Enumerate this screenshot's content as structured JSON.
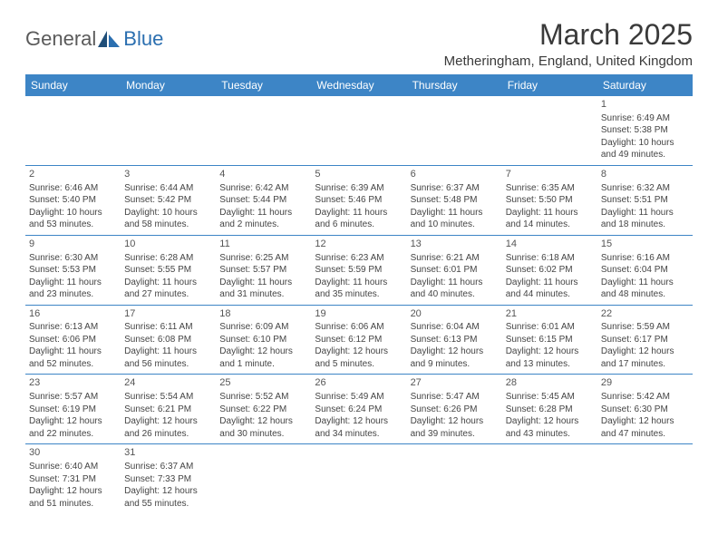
{
  "branding": {
    "logo_text_1": "General",
    "logo_text_2": "Blue",
    "logo_color_1": "#5a5a5a",
    "logo_color_2": "#2b6fb0"
  },
  "header": {
    "month_title": "March 2025",
    "location": "Metheringham, England, United Kingdom"
  },
  "colors": {
    "header_bg": "#3d85c6",
    "header_text": "#ffffff",
    "grid_line": "#3d85c6",
    "text": "#444444"
  },
  "day_names": [
    "Sunday",
    "Monday",
    "Tuesday",
    "Wednesday",
    "Thursday",
    "Friday",
    "Saturday"
  ],
  "weeks": [
    [
      null,
      null,
      null,
      null,
      null,
      null,
      {
        "n": "1",
        "sunrise": "Sunrise: 6:49 AM",
        "sunset": "Sunset: 5:38 PM",
        "daylight": "Daylight: 10 hours and 49 minutes."
      }
    ],
    [
      {
        "n": "2",
        "sunrise": "Sunrise: 6:46 AM",
        "sunset": "Sunset: 5:40 PM",
        "daylight": "Daylight: 10 hours and 53 minutes."
      },
      {
        "n": "3",
        "sunrise": "Sunrise: 6:44 AM",
        "sunset": "Sunset: 5:42 PM",
        "daylight": "Daylight: 10 hours and 58 minutes."
      },
      {
        "n": "4",
        "sunrise": "Sunrise: 6:42 AM",
        "sunset": "Sunset: 5:44 PM",
        "daylight": "Daylight: 11 hours and 2 minutes."
      },
      {
        "n": "5",
        "sunrise": "Sunrise: 6:39 AM",
        "sunset": "Sunset: 5:46 PM",
        "daylight": "Daylight: 11 hours and 6 minutes."
      },
      {
        "n": "6",
        "sunrise": "Sunrise: 6:37 AM",
        "sunset": "Sunset: 5:48 PM",
        "daylight": "Daylight: 11 hours and 10 minutes."
      },
      {
        "n": "7",
        "sunrise": "Sunrise: 6:35 AM",
        "sunset": "Sunset: 5:50 PM",
        "daylight": "Daylight: 11 hours and 14 minutes."
      },
      {
        "n": "8",
        "sunrise": "Sunrise: 6:32 AM",
        "sunset": "Sunset: 5:51 PM",
        "daylight": "Daylight: 11 hours and 18 minutes."
      }
    ],
    [
      {
        "n": "9",
        "sunrise": "Sunrise: 6:30 AM",
        "sunset": "Sunset: 5:53 PM",
        "daylight": "Daylight: 11 hours and 23 minutes."
      },
      {
        "n": "10",
        "sunrise": "Sunrise: 6:28 AM",
        "sunset": "Sunset: 5:55 PM",
        "daylight": "Daylight: 11 hours and 27 minutes."
      },
      {
        "n": "11",
        "sunrise": "Sunrise: 6:25 AM",
        "sunset": "Sunset: 5:57 PM",
        "daylight": "Daylight: 11 hours and 31 minutes."
      },
      {
        "n": "12",
        "sunrise": "Sunrise: 6:23 AM",
        "sunset": "Sunset: 5:59 PM",
        "daylight": "Daylight: 11 hours and 35 minutes."
      },
      {
        "n": "13",
        "sunrise": "Sunrise: 6:21 AM",
        "sunset": "Sunset: 6:01 PM",
        "daylight": "Daylight: 11 hours and 40 minutes."
      },
      {
        "n": "14",
        "sunrise": "Sunrise: 6:18 AM",
        "sunset": "Sunset: 6:02 PM",
        "daylight": "Daylight: 11 hours and 44 minutes."
      },
      {
        "n": "15",
        "sunrise": "Sunrise: 6:16 AM",
        "sunset": "Sunset: 6:04 PM",
        "daylight": "Daylight: 11 hours and 48 minutes."
      }
    ],
    [
      {
        "n": "16",
        "sunrise": "Sunrise: 6:13 AM",
        "sunset": "Sunset: 6:06 PM",
        "daylight": "Daylight: 11 hours and 52 minutes."
      },
      {
        "n": "17",
        "sunrise": "Sunrise: 6:11 AM",
        "sunset": "Sunset: 6:08 PM",
        "daylight": "Daylight: 11 hours and 56 minutes."
      },
      {
        "n": "18",
        "sunrise": "Sunrise: 6:09 AM",
        "sunset": "Sunset: 6:10 PM",
        "daylight": "Daylight: 12 hours and 1 minute."
      },
      {
        "n": "19",
        "sunrise": "Sunrise: 6:06 AM",
        "sunset": "Sunset: 6:12 PM",
        "daylight": "Daylight: 12 hours and 5 minutes."
      },
      {
        "n": "20",
        "sunrise": "Sunrise: 6:04 AM",
        "sunset": "Sunset: 6:13 PM",
        "daylight": "Daylight: 12 hours and 9 minutes."
      },
      {
        "n": "21",
        "sunrise": "Sunrise: 6:01 AM",
        "sunset": "Sunset: 6:15 PM",
        "daylight": "Daylight: 12 hours and 13 minutes."
      },
      {
        "n": "22",
        "sunrise": "Sunrise: 5:59 AM",
        "sunset": "Sunset: 6:17 PM",
        "daylight": "Daylight: 12 hours and 17 minutes."
      }
    ],
    [
      {
        "n": "23",
        "sunrise": "Sunrise: 5:57 AM",
        "sunset": "Sunset: 6:19 PM",
        "daylight": "Daylight: 12 hours and 22 minutes."
      },
      {
        "n": "24",
        "sunrise": "Sunrise: 5:54 AM",
        "sunset": "Sunset: 6:21 PM",
        "daylight": "Daylight: 12 hours and 26 minutes."
      },
      {
        "n": "25",
        "sunrise": "Sunrise: 5:52 AM",
        "sunset": "Sunset: 6:22 PM",
        "daylight": "Daylight: 12 hours and 30 minutes."
      },
      {
        "n": "26",
        "sunrise": "Sunrise: 5:49 AM",
        "sunset": "Sunset: 6:24 PM",
        "daylight": "Daylight: 12 hours and 34 minutes."
      },
      {
        "n": "27",
        "sunrise": "Sunrise: 5:47 AM",
        "sunset": "Sunset: 6:26 PM",
        "daylight": "Daylight: 12 hours and 39 minutes."
      },
      {
        "n": "28",
        "sunrise": "Sunrise: 5:45 AM",
        "sunset": "Sunset: 6:28 PM",
        "daylight": "Daylight: 12 hours and 43 minutes."
      },
      {
        "n": "29",
        "sunrise": "Sunrise: 5:42 AM",
        "sunset": "Sunset: 6:30 PM",
        "daylight": "Daylight: 12 hours and 47 minutes."
      }
    ],
    [
      {
        "n": "30",
        "sunrise": "Sunrise: 6:40 AM",
        "sunset": "Sunset: 7:31 PM",
        "daylight": "Daylight: 12 hours and 51 minutes."
      },
      {
        "n": "31",
        "sunrise": "Sunrise: 6:37 AM",
        "sunset": "Sunset: 7:33 PM",
        "daylight": "Daylight: 12 hours and 55 minutes."
      },
      null,
      null,
      null,
      null,
      null
    ]
  ]
}
